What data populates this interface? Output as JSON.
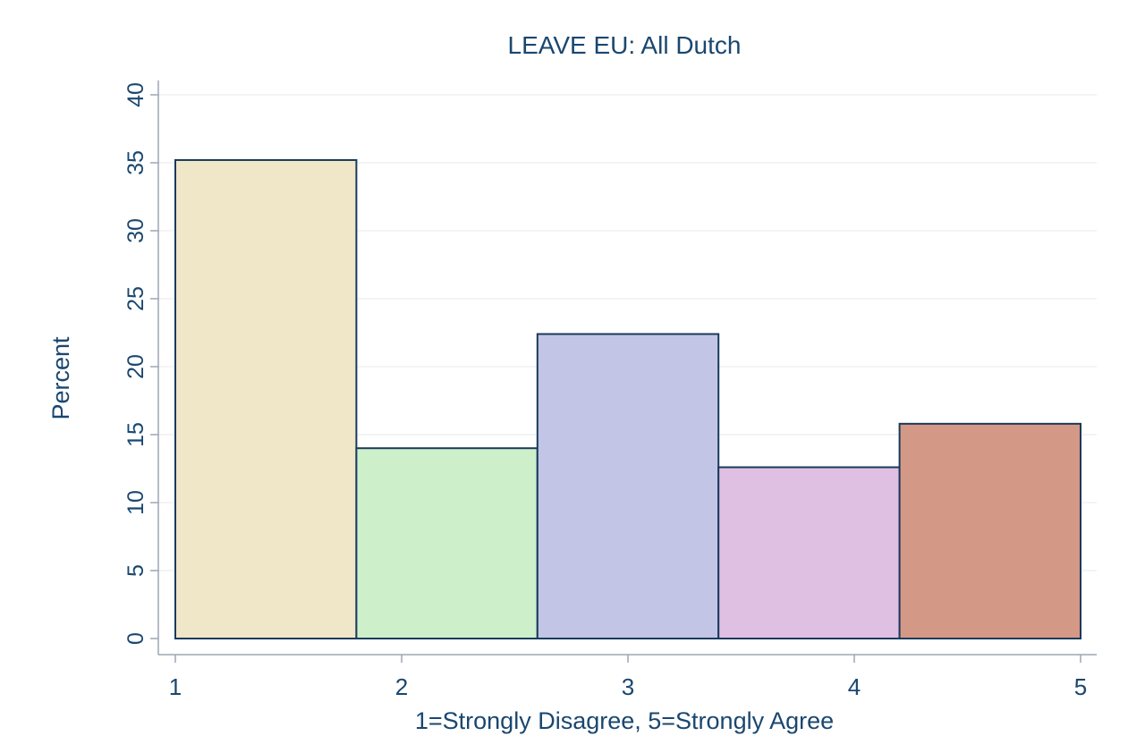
{
  "chart_data": {
    "type": "bar",
    "title": "LEAVE EU: All Dutch",
    "xlabel": "1=Strongly Disagree, 5=Strongly Agree",
    "ylabel": "Percent",
    "x_ticks": [
      "1",
      "2",
      "3",
      "4",
      "5"
    ],
    "y_ticks": [
      "0",
      "5",
      "10",
      "15",
      "20",
      "25",
      "30",
      "35",
      "40"
    ],
    "ylim": [
      0,
      40
    ],
    "xlim": [
      1,
      5
    ],
    "grid": true,
    "bins": [
      {
        "x_start": 1.0,
        "x_end": 1.8,
        "value": 35.2,
        "color": "#f0e6c8"
      },
      {
        "x_start": 1.8,
        "x_end": 2.6,
        "value": 14.0,
        "color": "#cdf0cb"
      },
      {
        "x_start": 2.6,
        "x_end": 3.4,
        "value": 22.4,
        "color": "#c2c5e5"
      },
      {
        "x_start": 3.4,
        "x_end": 4.2,
        "value": 12.6,
        "color": "#dfc0e3"
      },
      {
        "x_start": 4.2,
        "x_end": 5.0,
        "value": 15.8,
        "color": "#d49886"
      }
    ],
    "colors": {
      "text": "#1a476f",
      "bar_outline": "#1a3a5c",
      "axis": "#9aa7b4",
      "grid": "#eaeef2"
    }
  }
}
